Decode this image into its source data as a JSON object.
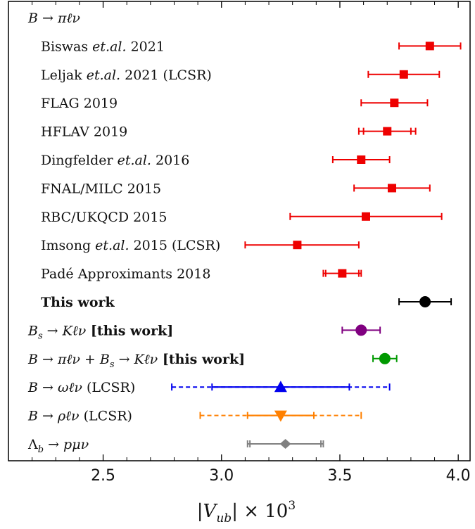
{
  "chart_data": {
    "type": "scatter",
    "subtype": "forest-plot",
    "xlabel": "|V_ub| × 10^3",
    "xlim": [
      2.1,
      4.05
    ],
    "xticks": [
      "2.5",
      "3.0",
      "3.5",
      "4.0"
    ],
    "xtick_values": [
      2.5,
      3.0,
      3.5,
      4.0
    ],
    "grid": false,
    "legend": "none",
    "rows": [
      {
        "kind": "header",
        "label": "B → πℓν"
      },
      {
        "label": "Biswas et.al. 2021",
        "value": 3.88,
        "lo": 3.75,
        "hi": 4.01,
        "marker": "square",
        "color": "#ee0000",
        "style": "solid"
      },
      {
        "label": "Leljak et.al. 2021 (LCSR)",
        "value": 3.77,
        "lo": 3.62,
        "hi": 3.92,
        "marker": "square",
        "color": "#ee0000",
        "style": "solid"
      },
      {
        "label": "FLAG 2019",
        "value": 3.73,
        "lo": 3.59,
        "hi": 3.87,
        "marker": "square",
        "color": "#ee0000",
        "style": "solid"
      },
      {
        "label": "HFLAV 2019",
        "value": 3.7,
        "lo": 3.58,
        "hi": 3.82,
        "inner_lo": 3.6,
        "inner_hi": 3.8,
        "marker": "square",
        "color": "#ee0000",
        "style": "solid"
      },
      {
        "label": "Dingfelder et.al. 2016",
        "value": 3.59,
        "lo": 3.47,
        "hi": 3.71,
        "marker": "square",
        "color": "#ee0000",
        "style": "solid"
      },
      {
        "label": "FNAL/MILC 2015",
        "value": 3.72,
        "lo": 3.56,
        "hi": 3.88,
        "marker": "square",
        "color": "#ee0000",
        "style": "solid"
      },
      {
        "label": "RBC/UKQCD 2015",
        "value": 3.61,
        "lo": 3.29,
        "hi": 3.93,
        "marker": "square",
        "color": "#ee0000",
        "style": "solid"
      },
      {
        "label": "Imsong et.al. 2015 (LCSR)",
        "value": 3.32,
        "lo": 3.1,
        "hi": 3.58,
        "marker": "square",
        "color": "#ee0000",
        "style": "solid"
      },
      {
        "label": "Padé Approximants 2018",
        "value": 3.51,
        "lo": 3.43,
        "hi": 3.59,
        "inner_lo": 3.44,
        "inner_hi": 3.58,
        "marker": "square",
        "color": "#ee0000",
        "style": "solid"
      },
      {
        "label": "This work",
        "bold": true,
        "value": 3.86,
        "lo": 3.75,
        "hi": 3.97,
        "marker": "circle",
        "color": "#000000",
        "style": "solid"
      },
      {
        "label": "B_s → Kℓν [this work]",
        "value": 3.59,
        "lo": 3.51,
        "hi": 3.67,
        "marker": "circle",
        "color": "#800080",
        "style": "solid"
      },
      {
        "label": "B → πℓν + B_s → Kℓν [this work]",
        "value": 3.69,
        "lo": 3.64,
        "hi": 3.74,
        "marker": "circle",
        "color": "#009900",
        "style": "solid"
      },
      {
        "label": "B → ωℓν (LCSR)",
        "value": 3.25,
        "lo": 2.79,
        "hi": 3.71,
        "inner_lo": 2.96,
        "inner_hi": 3.54,
        "marker": "triangle-up",
        "color": "#0000ee",
        "style": "dashed"
      },
      {
        "label": "B → ρℓν (LCSR)",
        "value": 3.25,
        "lo": 2.91,
        "hi": 3.59,
        "inner_lo": 3.11,
        "inner_hi": 3.39,
        "marker": "triangle-down",
        "color": "#ff8000",
        "style": "dashed"
      },
      {
        "label": "Λ_b → pμν",
        "value": 3.27,
        "lo": 3.11,
        "hi": 3.43,
        "inner_lo": 3.12,
        "inner_hi": 3.42,
        "marker": "diamond",
        "color": "#808080",
        "style": "solid"
      }
    ]
  },
  "label_parts": [
    [
      {
        "t": "B → πℓν",
        "i": true
      }
    ],
    [
      {
        "t": "Biswas "
      },
      {
        "t": "et.al.",
        "i": true
      },
      {
        "t": " 2021"
      }
    ],
    [
      {
        "t": "Leljak "
      },
      {
        "t": "et.al.",
        "i": true
      },
      {
        "t": " 2021 (LCSR)"
      }
    ],
    [
      {
        "t": "FLAG 2019"
      }
    ],
    [
      {
        "t": "HFLAV 2019"
      }
    ],
    [
      {
        "t": "Dingfelder "
      },
      {
        "t": "et.al.",
        "i": true
      },
      {
        "t": " 2016"
      }
    ],
    [
      {
        "t": "FNAL/MILC 2015"
      }
    ],
    [
      {
        "t": "RBC/UKQCD 2015"
      }
    ],
    [
      {
        "t": "Imsong "
      },
      {
        "t": "et.al.",
        "i": true
      },
      {
        "t": " 2015 (LCSR)"
      }
    ],
    [
      {
        "t": "Padé Approximants 2018"
      }
    ],
    [
      {
        "t": "This work",
        "b": true
      }
    ],
    [
      {
        "t": "B",
        "i": true
      },
      {
        "t": "s",
        "i": true,
        "sub": true
      },
      {
        "t": " → ",
        "i": true
      },
      {
        "t": "Kℓν",
        "i": true
      },
      {
        "t": " [this work]",
        "b": true
      }
    ],
    [
      {
        "t": "B → πℓν + B",
        "i": true
      },
      {
        "t": "s",
        "i": true,
        "sub": true
      },
      {
        "t": " → Kℓν",
        "i": true
      },
      {
        "t": " [this work]",
        "b": true
      }
    ],
    [
      {
        "t": "B → ωℓν",
        "i": true
      },
      {
        "t": " (LCSR)"
      }
    ],
    [
      {
        "t": "B → ρℓν",
        "i": true
      },
      {
        "t": " (LCSR)"
      }
    ],
    [
      {
        "t": "Λ",
        "i": false
      },
      {
        "t": "b",
        "i": true,
        "sub": true
      },
      {
        "t": " → pμν",
        "i": true
      }
    ]
  ]
}
